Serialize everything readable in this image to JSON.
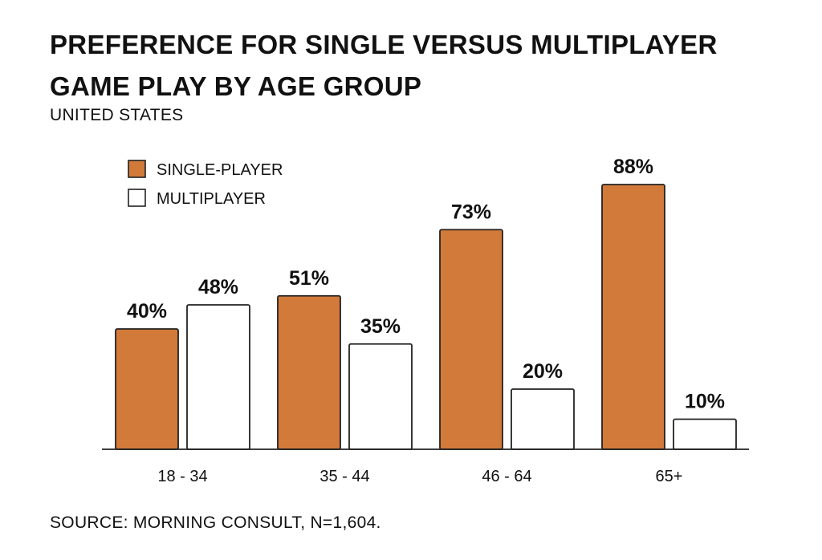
{
  "title": "PREFERENCE FOR SINGLE VERSUS MULTIPLAYER GAME PLAY BY AGE GROUP",
  "subtitle": "UNITED STATES",
  "source": "SOURCE: MORNING CONSULT, N=1,604.",
  "colors": {
    "single": "#d27a3a",
    "multi": "#ffffff",
    "outline": "#222222"
  },
  "chart_data": {
    "type": "bar",
    "categories": [
      "18 - 34",
      "35 - 44",
      "46 - 64",
      "65+"
    ],
    "series": [
      {
        "name": "SINGLE-PLAYER",
        "values": [
          40,
          51,
          73,
          88
        ],
        "labels": [
          "40%",
          "51%",
          "73%",
          "88%"
        ]
      },
      {
        "name": "MULTIPLAYER",
        "values": [
          48,
          35,
          20,
          10
        ],
        "labels": [
          "48%",
          "35%",
          "20%",
          "10%"
        ]
      }
    ],
    "ylim": [
      0,
      100
    ],
    "grid": false,
    "legend_position": "top-left"
  }
}
